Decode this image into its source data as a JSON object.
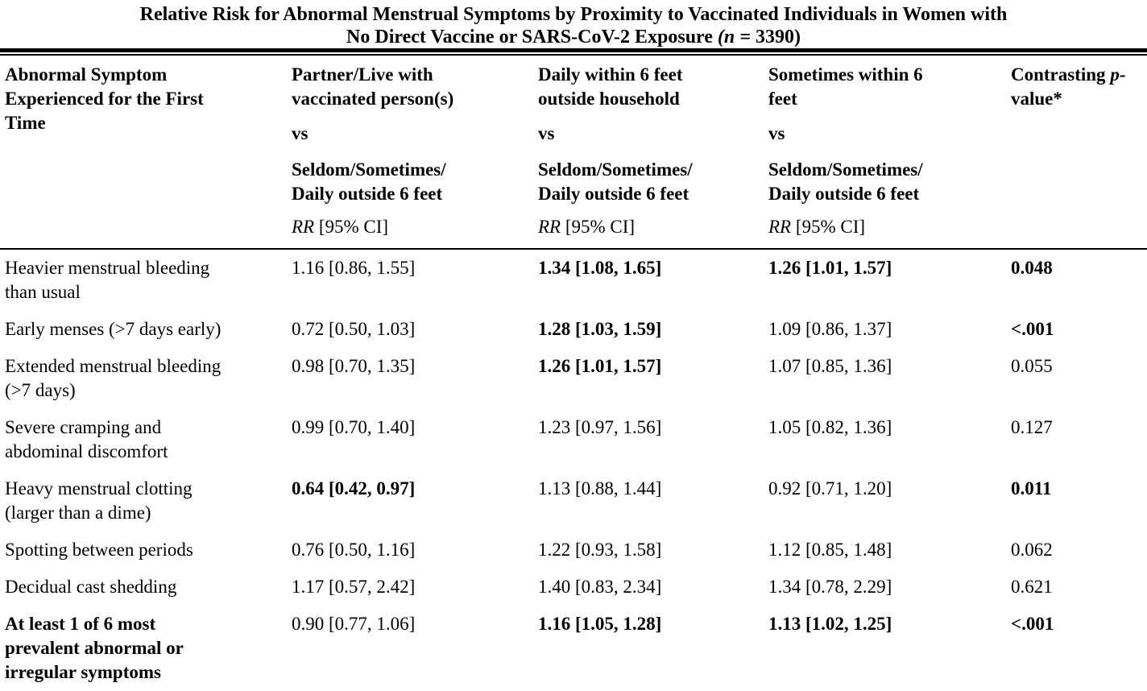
{
  "title": {
    "line1": "Relative Risk for Abnormal Menstrual Symptoms by Proximity to Vaccinated Individuals in Women with",
    "line2_text": "No Direct Vaccine or SARS-CoV-2 Exposure ",
    "line2_n_italic": "(n = ",
    "line2_n_value": "3390)"
  },
  "header": {
    "symptom_column": "Abnormal Symptom\nExperienced for the First\nTime",
    "vs_label": "vs",
    "reference": "Seldom/Sometimes/\nDaily outside 6 feet",
    "rr_italic": "RR",
    "rr_rest": " [95% CI]",
    "columns": [
      {
        "comparison": "Partner/Live with\nvaccinated person(s)"
      },
      {
        "comparison": "Daily within 6 feet\noutside household"
      },
      {
        "comparison": "Sometimes within 6\nfeet"
      }
    ],
    "pvalue": {
      "prefix": "Contrasting ",
      "italic": "p-",
      "line2": "value*"
    }
  },
  "rows": [
    {
      "symptom": "Heavier menstrual bleeding\nthan usual",
      "symptom_bold": false,
      "cells": [
        {
          "text": "1.16 [0.86, 1.55]",
          "bold": false
        },
        {
          "text": "1.34 [1.08, 1.65]",
          "bold": true
        },
        {
          "text": "1.26 [1.01, 1.57]",
          "bold": true
        }
      ],
      "p": {
        "text": "0.048",
        "bold": true
      }
    },
    {
      "symptom": "Early menses (>7 days early)",
      "symptom_bold": false,
      "cells": [
        {
          "text": "0.72 [0.50, 1.03]",
          "bold": false
        },
        {
          "text": "1.28 [1.03, 1.59]",
          "bold": true
        },
        {
          "text": "1.09 [0.86, 1.37]",
          "bold": false
        }
      ],
      "p": {
        "text": "<.001",
        "bold": true
      }
    },
    {
      "symptom": "Extended menstrual bleeding\n(>7 days)",
      "symptom_bold": false,
      "cells": [
        {
          "text": "0.98 [0.70, 1.35]",
          "bold": false
        },
        {
          "text": "1.26 [1.01, 1.57]",
          "bold": true
        },
        {
          "text": "1.07 [0.85, 1.36]",
          "bold": false
        }
      ],
      "p": {
        "text": "0.055",
        "bold": false
      }
    },
    {
      "symptom": "Severe cramping and\nabdominal discomfort",
      "symptom_bold": false,
      "cells": [
        {
          "text": "0.99 [0.70, 1.40]",
          "bold": false
        },
        {
          "text": "1.23 [0.97, 1.56]",
          "bold": false
        },
        {
          "text": "1.05 [0.82, 1.36]",
          "bold": false
        }
      ],
      "p": {
        "text": "0.127",
        "bold": false
      }
    },
    {
      "symptom": "Heavy menstrual clotting\n(larger than a dime)",
      "symptom_bold": false,
      "cells": [
        {
          "text": "0.64 [0.42, 0.97]",
          "bold": true
        },
        {
          "text": "1.13 [0.88, 1.44]",
          "bold": false
        },
        {
          "text": "0.92 [0.71, 1.20]",
          "bold": false
        }
      ],
      "p": {
        "text": "0.011",
        "bold": true
      }
    },
    {
      "symptom": "Spotting between periods",
      "symptom_bold": false,
      "cells": [
        {
          "text": "0.76 [0.50, 1.16]",
          "bold": false
        },
        {
          "text": "1.22 [0.93, 1.58]",
          "bold": false
        },
        {
          "text": "1.12 [0.85, 1.48]",
          "bold": false
        }
      ],
      "p": {
        "text": "0.062",
        "bold": false
      }
    },
    {
      "symptom": "Decidual cast shedding",
      "symptom_bold": false,
      "cells": [
        {
          "text": "1.17 [0.57, 2.42]",
          "bold": false
        },
        {
          "text": "1.40 [0.83, 2.34]",
          "bold": false
        },
        {
          "text": "1.34 [0.78, 2.29]",
          "bold": false
        }
      ],
      "p": {
        "text": "0.621",
        "bold": false
      }
    },
    {
      "symptom": "At least 1 of 6 most\nprevalent abnormal or\nirregular symptoms",
      "symptom_bold": true,
      "cells": [
        {
          "text": "0.90 [0.77, 1.06]",
          "bold": false
        },
        {
          "text": "1.16 [1.05, 1.28]",
          "bold": true
        },
        {
          "text": "1.13 [1.02, 1.25]",
          "bold": true
        }
      ],
      "p": {
        "text": "<.001",
        "bold": true
      }
    }
  ]
}
